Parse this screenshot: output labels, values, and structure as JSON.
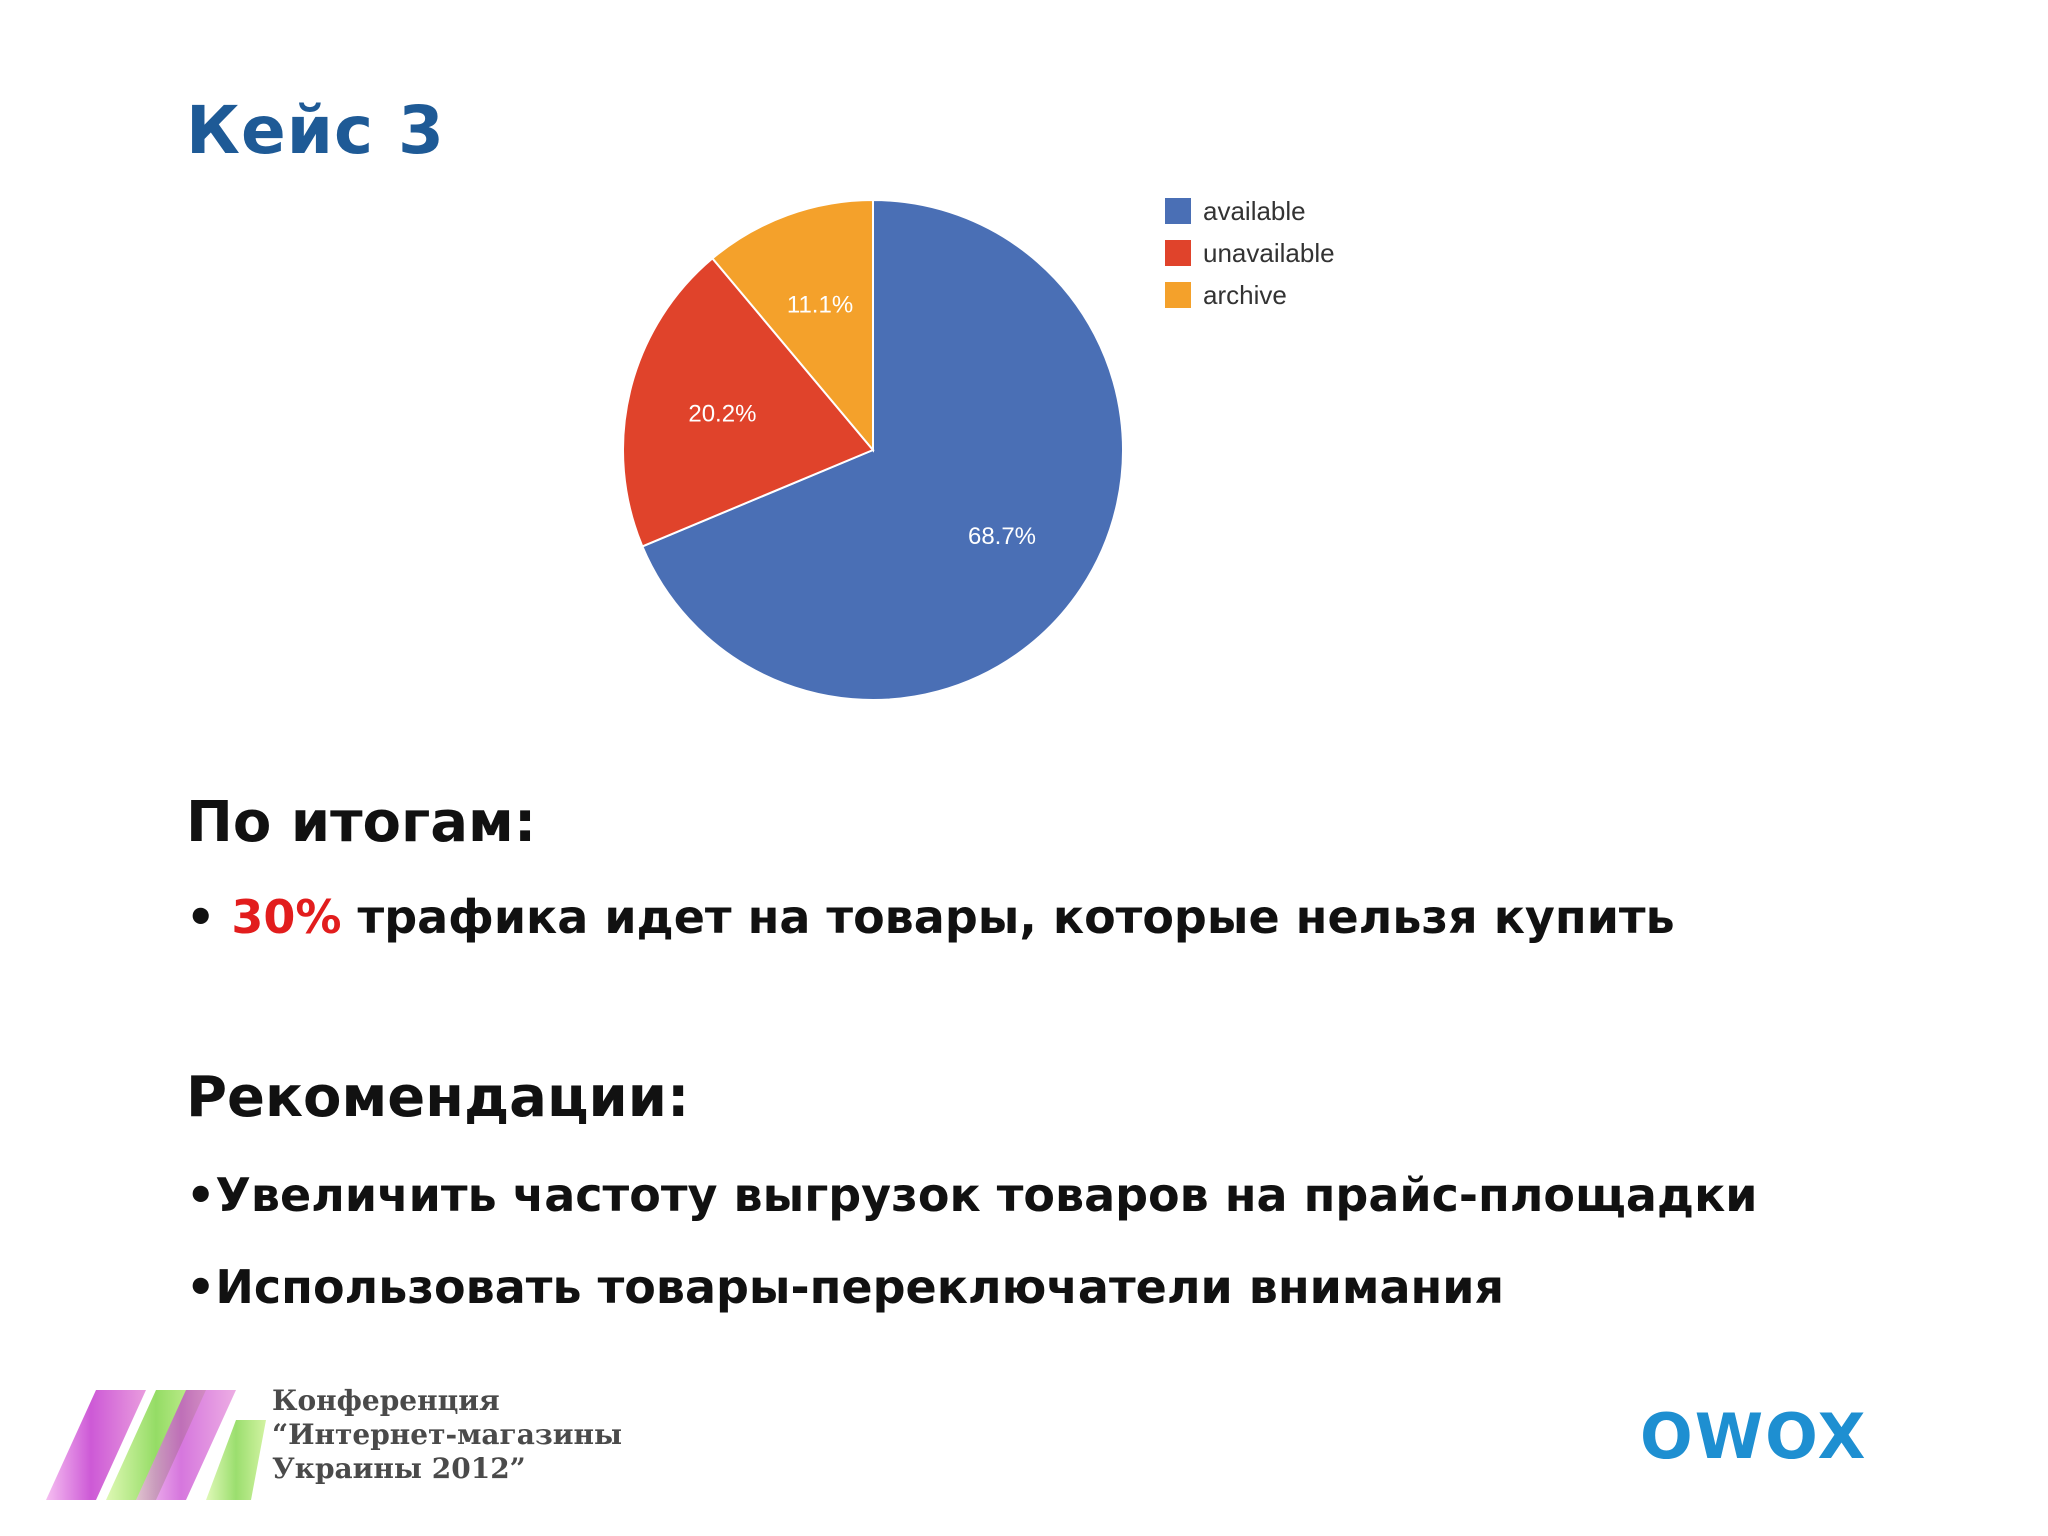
{
  "slide": {
    "title": "Кейс 3",
    "summary_heading": "По итогам:",
    "summary_bullet_prefix": "•",
    "summary_highlight": "30%",
    "summary_text": "трафика идет на товары, которые нельзя купить",
    "recommendations_heading": "Рекомендации:",
    "recommendations": [
      "•Увеличить частоту выгрузок товаров на прайс-площадки",
      "•Использовать товары-переключатели внимания"
    ],
    "conference_lines": [
      "Конференция",
      "“Интернет-магазины",
      "Украины 2012”"
    ],
    "brand": "OWOX",
    "colors": {
      "title": "#1e5a96",
      "highlight": "#e21d1d",
      "brand": "#1e8fd1"
    }
  },
  "chart_data": {
    "type": "pie",
    "categories": [
      "available",
      "unavailable",
      "archive"
    ],
    "values": [
      68.7,
      20.2,
      11.1
    ],
    "labels": [
      "68.7%",
      "20.2%",
      "11.1%"
    ],
    "colors": [
      "#4a6fb5",
      "#e0432b",
      "#f4a12b"
    ],
    "legend_position": "right"
  }
}
